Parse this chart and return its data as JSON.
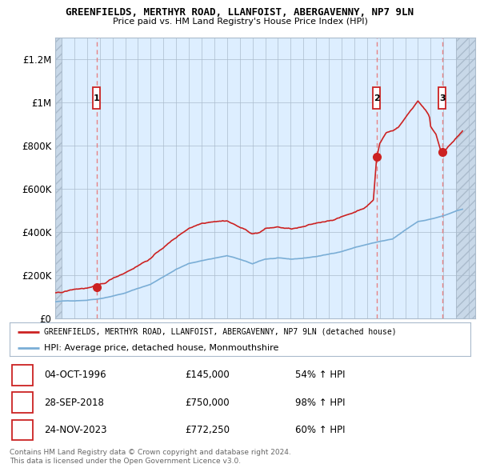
{
  "title": "GREENFIELDS, MERTHYR ROAD, LLANFOIST, ABERGAVENNY, NP7 9LN",
  "subtitle": "Price paid vs. HM Land Registry's House Price Index (HPI)",
  "legend_line1": "GREENFIELDS, MERTHYR ROAD, LLANFOIST, ABERGAVENNY, NP7 9LN (detached house)",
  "legend_line2": "HPI: Average price, detached house, Monmouthshire",
  "footer1": "Contains HM Land Registry data © Crown copyright and database right 2024.",
  "footer2": "This data is licensed under the Open Government Licence v3.0.",
  "transactions": [
    {
      "num": 1,
      "date": "04-OCT-1996",
      "price": 145000,
      "hpi_pct": "54%",
      "x_year": 1996.75
    },
    {
      "num": 2,
      "date": "28-SEP-2018",
      "price": 750000,
      "hpi_pct": "98%",
      "x_year": 2018.75
    },
    {
      "num": 3,
      "date": "24-NOV-2023",
      "price": 772250,
      "hpi_pct": "60%",
      "x_year": 2023.9
    }
  ],
  "hpi_color": "#7aaed6",
  "price_color": "#cc2222",
  "dashed_color": "#e87070",
  "chart_bg": "#ddeeff",
  "hatch_color": "#c8d8e8",
  "grid_color": "#aabbcc",
  "ylim": [
    0,
    1300000
  ],
  "xlim_start": 1993.5,
  "xlim_end": 2026.5,
  "yticks": [
    0,
    200000,
    400000,
    600000,
    800000,
    1000000,
    1200000
  ],
  "ytick_labels": [
    "£0",
    "£200K",
    "£400K",
    "£600K",
    "£800K",
    "£1M",
    "£1.2M"
  ],
  "xticks": [
    1994,
    1995,
    1996,
    1997,
    1998,
    1999,
    2000,
    2001,
    2002,
    2003,
    2004,
    2005,
    2006,
    2007,
    2008,
    2009,
    2010,
    2011,
    2012,
    2013,
    2014,
    2015,
    2016,
    2017,
    2018,
    2019,
    2020,
    2021,
    2022,
    2023,
    2024,
    2025,
    2026
  ],
  "table_data": [
    [
      1,
      "04-OCT-1996",
      "£145,000",
      "54% ↑ HPI"
    ],
    [
      2,
      "28-SEP-2018",
      "£750,000",
      "98% ↑ HPI"
    ],
    [
      3,
      "24-NOV-2023",
      "£772,250",
      "60% ↑ HPI"
    ]
  ]
}
